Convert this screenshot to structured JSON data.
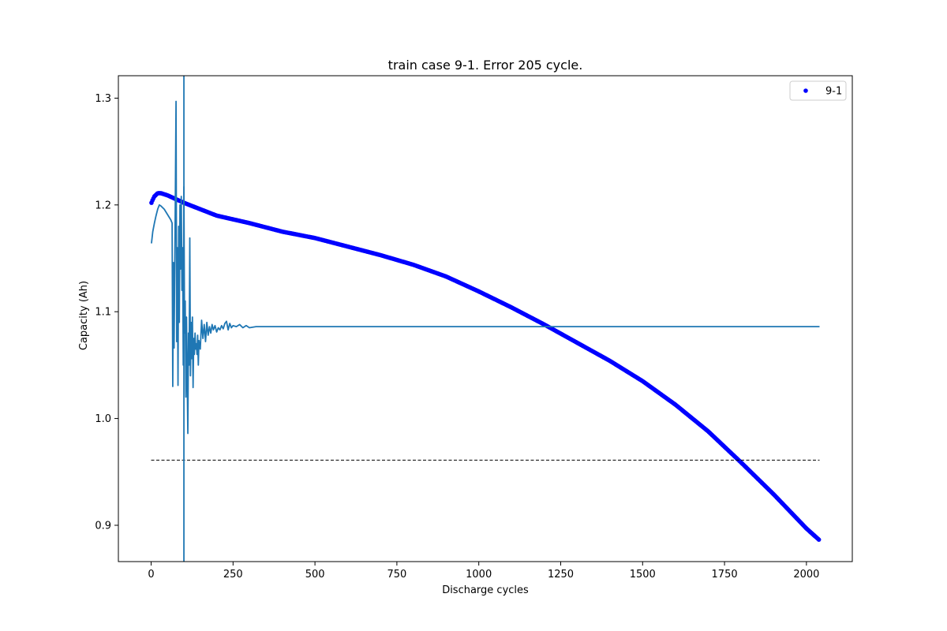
{
  "chart_data": {
    "type": "scatter",
    "title": "train case 9-1. Error 205 cycle.",
    "xlabel": "Discharge cycles",
    "ylabel": "Capacity (Ah)",
    "xlim": [
      -100,
      2140
    ],
    "ylim": [
      0.866,
      1.321
    ],
    "xticks": [
      0,
      250,
      500,
      750,
      1000,
      1250,
      1500,
      1750,
      2000
    ],
    "yticks": [
      0.9,
      1.0,
      1.1,
      1.2,
      1.3
    ],
    "legend": {
      "placement": "top-right",
      "entries": [
        "9-1"
      ]
    },
    "colors": {
      "measured": "#0000ff",
      "prediction": "#1f77b4",
      "threshold": "#000000"
    },
    "series": [
      {
        "name": "9-1",
        "kind": "scatter",
        "x_start": 1,
        "x_end": 2040,
        "curve_x": [
          1,
          5,
          10,
          20,
          30,
          50,
          100,
          200,
          300,
          400,
          500,
          600,
          700,
          800,
          900,
          1000,
          1100,
          1200,
          1300,
          1400,
          1500,
          1600,
          1700,
          1800,
          1900,
          2000,
          2040
        ],
        "curve_y": [
          1.202,
          1.205,
          1.208,
          1.211,
          1.211,
          1.209,
          1.202,
          1.19,
          1.183,
          1.175,
          1.169,
          1.161,
          1.153,
          1.144,
          1.133,
          1.119,
          1.104,
          1.088,
          1.071,
          1.054,
          1.035,
          1.013,
          0.988,
          0.959,
          0.929,
          0.897,
          0.886
        ]
      },
      {
        "kind": "line",
        "x": [
          1,
          5,
          10,
          15,
          20,
          25,
          30,
          40,
          50,
          60,
          64,
          66,
          68,
          70,
          72,
          74,
          76,
          78,
          80,
          82,
          84,
          86,
          88,
          90,
          92,
          94,
          96,
          98,
          100,
          102,
          104,
          106,
          108,
          110,
          112,
          114,
          116,
          118,
          120,
          122,
          124,
          126,
          128,
          130,
          132,
          134,
          136,
          138,
          140,
          142,
          144,
          146,
          148,
          150,
          154,
          158,
          162,
          166,
          170,
          174,
          178,
          182,
          186,
          190,
          195,
          200,
          205,
          210,
          215,
          220,
          225,
          230,
          235,
          240,
          245,
          250,
          260,
          270,
          280,
          290,
          300,
          320,
          340,
          360,
          380,
          400,
          500,
          1000,
          1500,
          2040
        ],
        "y": [
          1.164,
          1.175,
          1.183,
          1.19,
          1.196,
          1.2,
          1.199,
          1.196,
          1.191,
          1.186,
          1.183,
          1.03,
          1.146,
          1.066,
          1.14,
          1.212,
          1.297,
          1.072,
          1.16,
          1.031,
          1.18,
          1.09,
          1.2,
          1.14,
          1.208,
          1.12,
          1.16,
          1.05,
          1.217,
          1.08,
          1.11,
          1.02,
          1.095,
          1.04,
          0.986,
          1.08,
          1.05,
          1.169,
          1.04,
          1.09,
          1.056,
          1.095,
          1.029,
          1.075,
          1.06,
          1.08,
          1.065,
          1.07,
          1.06,
          1.078,
          1.05,
          1.073,
          1.068,
          1.065,
          1.092,
          1.075,
          1.088,
          1.072,
          1.09,
          1.078,
          1.086,
          1.08,
          1.088,
          1.083,
          1.087,
          1.081,
          1.085,
          1.083,
          1.087,
          1.084,
          1.089,
          1.091,
          1.083,
          1.089,
          1.085,
          1.087,
          1.086,
          1.088,
          1.085,
          1.087,
          1.085,
          1.086,
          1.086,
          1.086,
          1.086,
          1.086,
          1.086,
          1.086,
          1.086,
          1.086
        ]
      },
      {
        "kind": "dashed-line",
        "x": [
          0,
          2040
        ],
        "y": [
          0.961,
          0.961
        ]
      },
      {
        "kind": "vertical-line",
        "x": 100
      }
    ]
  }
}
